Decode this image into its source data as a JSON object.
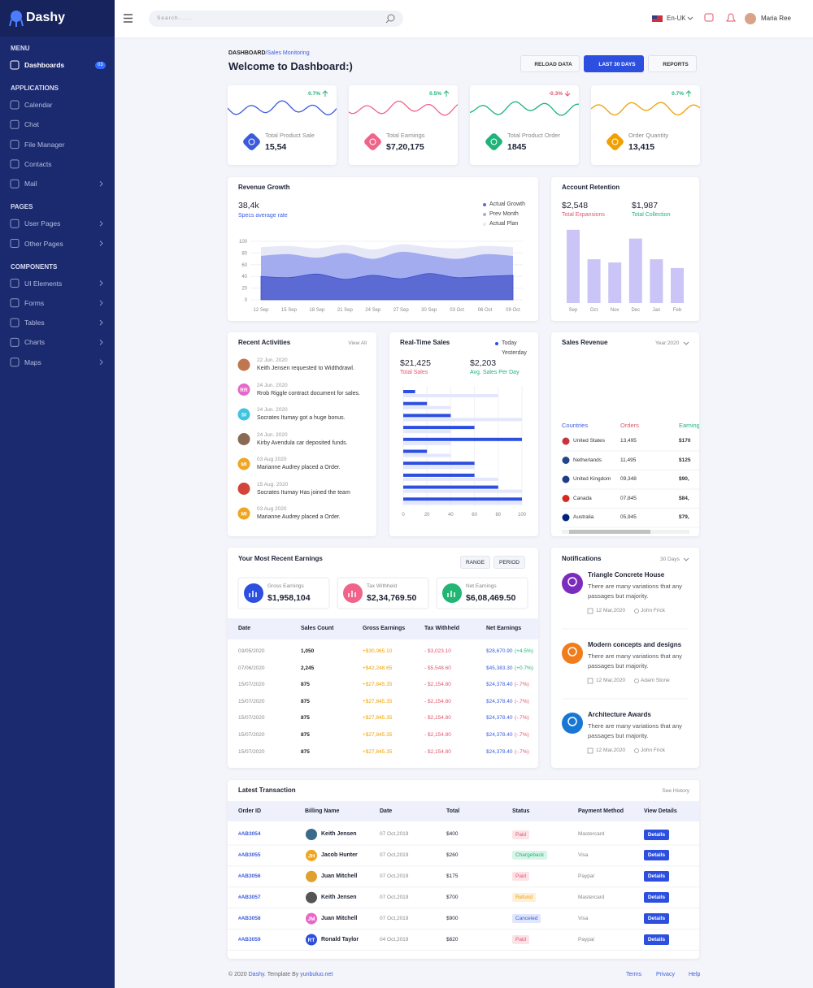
{
  "sidebar": {
    "brand": "Dashy",
    "sections": [
      {
        "title": "MENU",
        "items": [
          {
            "label": "Dashboards",
            "badge": "03",
            "active": true
          }
        ]
      },
      {
        "title": "APPLICATIONS",
        "items": [
          {
            "label": "Calendar"
          },
          {
            "label": "Chat"
          },
          {
            "label": "File Manager"
          },
          {
            "label": "Contacts"
          },
          {
            "label": "Mail",
            "arrow": true
          }
        ]
      },
      {
        "title": "PAGES",
        "items": [
          {
            "label": "User Pages",
            "arrow": true
          },
          {
            "label": "Other Pages",
            "arrow": true
          }
        ]
      },
      {
        "title": "COMPONENTS",
        "items": [
          {
            "label": "UI Elements",
            "arrow": true
          },
          {
            "label": "Forms",
            "arrow": true
          },
          {
            "label": "Tables",
            "arrow": true
          },
          {
            "label": "Charts",
            "arrow": true
          },
          {
            "label": "Maps",
            "arrow": true
          }
        ]
      }
    ]
  },
  "header": {
    "search_placeholder": "Search......",
    "language": "En-UK",
    "user": "Maria Ree"
  },
  "page": {
    "breadcrumb": [
      "DASHBOARD",
      "Sales Monitoring"
    ],
    "separator": "/",
    "title": "Welcome to Dashboard:)",
    "buttons": [
      {
        "label": "RELOAD DATA"
      },
      {
        "label": "LAST 30 DAYS",
        "active": true
      },
      {
        "label": "REPORTS"
      }
    ]
  },
  "stats": [
    {
      "label": "Total Product Sale",
      "value": "15,54",
      "change": "0.7%",
      "trend": "up",
      "color": "#3b5bdb"
    },
    {
      "label": "Total Earnings",
      "value": "$7,20,175",
      "change": "0.5%",
      "trend": "up",
      "color": "#f0648a"
    },
    {
      "label": "Total Product Order",
      "value": "1845",
      "change": "-0.3%",
      "trend": "down",
      "color": "#1fb37a"
    },
    {
      "label": "Order Quantity",
      "value": "13,415",
      "change": "0.7%",
      "trend": "up",
      "color": "#f0a000"
    }
  ],
  "revenue_growth": {
    "type": "area",
    "title": "Revenue Growth",
    "value": "38,4k",
    "subtitle": "Specs average rate",
    "categories": [
      "12 Sep",
      "15 Sep",
      "18 Sep",
      "21 Sep",
      "24 Sep",
      "27 Sep",
      "30 Sep",
      "03 Oct",
      "06 Oct",
      "09 Oct"
    ],
    "ylim": [
      0,
      100
    ],
    "yticks": [
      0,
      20,
      40,
      60,
      80,
      100
    ],
    "grid": true,
    "series": [
      {
        "name": "Actual Growth",
        "color": "#5c6bd3",
        "values": [
          40,
          38,
          44,
          35,
          42,
          36,
          45,
          38,
          40,
          42
        ]
      },
      {
        "name": "Prev Month",
        "color": "#a3acee",
        "values": [
          75,
          78,
          72,
          80,
          70,
          82,
          76,
          70,
          78,
          75
        ]
      },
      {
        "name": "Actual Plan",
        "color": "#e6e8f8",
        "values": [
          90,
          92,
          88,
          94,
          86,
          95,
          90,
          88,
          92,
          90
        ]
      }
    ]
  },
  "account_retention": {
    "type": "bar",
    "title": "Account Retention",
    "kpis": [
      {
        "value": "$2,548",
        "label": "Total Expansions",
        "color": "#e0566b"
      },
      {
        "value": "$1,987",
        "label": "Total Collection",
        "color": "#1fb37a"
      }
    ],
    "categories": [
      "Sep",
      "Oct",
      "Nov",
      "Dec",
      "Jan",
      "Feb"
    ],
    "values": [
      92,
      55,
      51,
      81,
      55,
      44
    ],
    "ylim": [
      0,
      100
    ],
    "color": "#cbc4f7"
  },
  "recent_activities": {
    "title": "Recent Activities",
    "link": "View All",
    "items": [
      {
        "date": "22 Jun. 2020",
        "text": "Keith Jensen requested to Widthdrawl.",
        "color": "#c0764e"
      },
      {
        "date": "24 Jun. 2020",
        "text": "Rrob Riggle contract document for sales.",
        "initials": "RR",
        "color": "#e767c8"
      },
      {
        "date": "24 Jun. 2020",
        "text": "Socrates Itumay got a huge bonus.",
        "initials": "SI",
        "color": "#3fc3e0"
      },
      {
        "date": "24 Jun. 2020",
        "text": "Kirby Avendula car deposited funds.",
        "color": "#8a6a55"
      },
      {
        "date": "03 Aug 2020",
        "text": "Marianne Audrey placed a Order.",
        "initials": "MI",
        "color": "#f0a520"
      },
      {
        "date": "15 Aug. 2020",
        "text": "Socrates Itumay Has joined the team",
        "color": "#d2453a"
      },
      {
        "date": "03 Aug 2020",
        "text": "Marianne Audrey placed a Order.",
        "initials": "MI",
        "color": "#f0a520"
      }
    ]
  },
  "realtime_sales": {
    "type": "hbar",
    "title": "Real-Time Sales",
    "kpis": [
      {
        "value": "$21,425",
        "label": "Total Sales",
        "color": "#e0566b"
      },
      {
        "value": "$2,203",
        "label": "Avg. Sales Per Day",
        "color": "#1fb37a"
      }
    ],
    "xlim": [
      0,
      100
    ],
    "xticks": [
      0,
      20,
      40,
      60,
      80,
      100
    ],
    "series": [
      {
        "name": "Today",
        "color": "#2c4fe0",
        "values": [
          10,
          20,
          40,
          60,
          100,
          20,
          60,
          60,
          80,
          100
        ]
      },
      {
        "name": "Yesterday",
        "color": "#e3e7fb",
        "values": [
          80,
          40,
          100,
          40,
          40,
          40,
          60,
          80,
          100,
          100
        ]
      }
    ]
  },
  "sales_revenue": {
    "title": "Sales Revenue",
    "filter": "Year:2020",
    "columns": [
      {
        "label": "Countries",
        "color": "#3c5ce0"
      },
      {
        "label": "Orders",
        "color": "#e0566b"
      },
      {
        "label": "Earnings",
        "color": "#1fb37a"
      }
    ],
    "rows": [
      [
        "United States",
        "13,495",
        "$170"
      ],
      [
        "Netherlands",
        "11,495",
        "$125"
      ],
      [
        "United Kingdom",
        "09,348",
        "$90,"
      ],
      [
        "Canada",
        "07,845",
        "$84,"
      ],
      [
        "Australia",
        "05,945",
        "$79,"
      ]
    ]
  },
  "earnings": {
    "title": "Your Most Recent Earnings",
    "buttons": [
      "RANGE",
      "PERIOD"
    ],
    "cards": [
      {
        "label": "Gross Earnings",
        "value": "$1,958,104",
        "color": "#2c4fe0"
      },
      {
        "label": "Tax Withheld",
        "value": "$2,34,769.50",
        "color": "#f0648a"
      },
      {
        "label": "Net Earnings",
        "value": "$6,08,469.50",
        "color": "#22b573"
      }
    ],
    "columns": [
      "Date",
      "Sales Count",
      "Gross Earnings",
      "Tax Withheld",
      "Net Earnings"
    ],
    "rows": [
      {
        "date": "03/05/2020",
        "count": "1,050",
        "gross": "+$30,065.10",
        "tax": "- $3,023.10",
        "net": "$28,670.90",
        "change": "(+4.5%)",
        "change_color": "#1fb37a"
      },
      {
        "date": "07/06/2020",
        "count": "2,245",
        "gross": "+$42,248.65",
        "tax": "- $5,548.60",
        "net": "$45,383.30",
        "change": "(+0.7%)",
        "change_color": "#1fb37a"
      },
      {
        "date": "15/07/2020",
        "count": "875",
        "gross": "+$27,845.35",
        "tax": "- $2,154.80",
        "net": "$24,378.40",
        "change": "(-.7%)",
        "change_color": "#e0566b"
      },
      {
        "date": "15/07/2020",
        "count": "875",
        "gross": "+$27,845.35",
        "tax": "- $2,154.80",
        "net": "$24,378.40",
        "change": "(-.7%)",
        "change_color": "#e0566b"
      },
      {
        "date": "15/07/2020",
        "count": "875",
        "gross": "+$27,845.35",
        "tax": "- $2,154.80",
        "net": "$24,378.40",
        "change": "(-.7%)",
        "change_color": "#e0566b"
      },
      {
        "date": "15/07/2020",
        "count": "875",
        "gross": "+$27,845.35",
        "tax": "- $2,154.80",
        "net": "$24,378.40",
        "change": "(-.7%)",
        "change_color": "#e0566b"
      },
      {
        "date": "15/07/2020",
        "count": "875",
        "gross": "+$27,845.35",
        "tax": "- $2,154.80",
        "net": "$24,378.40",
        "change": "(-.7%)",
        "change_color": "#e0566b"
      }
    ]
  },
  "notifications": {
    "title": "Notifications",
    "filter": "30 Days",
    "items": [
      {
        "title": "Triangle Concrete House",
        "text": "There are many variations that any passages but majority.",
        "date": "12 Mar,2020",
        "author": "John Frick",
        "color": "#7b2cbf"
      },
      {
        "title": "Modern concepts and designs",
        "text": "There are many variations that any passages but majority.",
        "date": "12 Mar,2020",
        "author": "Adam Stone",
        "color": "#f07c1b"
      },
      {
        "title": "Architecture Awards",
        "text": "There are many variations that any passages but majority.",
        "date": "12 Mar,2020",
        "author": "John Frick",
        "color": "#1877d4"
      }
    ]
  },
  "transactions": {
    "title": "Latest Transaction",
    "link": "See History",
    "columns": [
      "Order ID",
      "Billing Name",
      "Date",
      "Total",
      "Status",
      "Payment Method",
      "View Details"
    ],
    "rows": [
      {
        "id": "#AB3054",
        "name": "Keith Jensen",
        "color": "#3a6a8a",
        "date": "07 Oct,2019",
        "total": "$400",
        "status": "Paid",
        "status_color": "#e0566b",
        "status_bg": "#fde3e7",
        "method": "Mastercard",
        "action": "Details"
      },
      {
        "id": "#AB3055",
        "name": "Jacob Hunter",
        "initials": "JH",
        "color": "#f0a520",
        "date": "07 Oct,2019",
        "total": "$260",
        "status": "Chargeback",
        "status_color": "#1fb37a",
        "status_bg": "#d8f5ea",
        "method": "Visa",
        "action": "Details"
      },
      {
        "id": "#AB3056",
        "name": "Juan Mitchell",
        "color": "#e0a030",
        "date": "07 Oct,2019",
        "total": "$175",
        "status": "Paid",
        "status_color": "#e0566b",
        "status_bg": "#fde3e7",
        "method": "Paypal",
        "action": "Details"
      },
      {
        "id": "#AB3057",
        "name": "Keith Jensen",
        "color": "#555",
        "date": "07 Oct,2019",
        "total": "$700",
        "status": "Refund",
        "status_color": "#f0a000",
        "status_bg": "#fdf0d8",
        "method": "Mastercard",
        "action": "Details"
      },
      {
        "id": "#AB3058",
        "name": "Juan Mitchell",
        "initials": "JM",
        "color": "#e767c8",
        "date": "07 Oct,2019",
        "total": "$900",
        "status": "Canceled",
        "status_color": "#3c5ce0",
        "status_bg": "#e0e6fb",
        "method": "Visa",
        "action": "Details"
      },
      {
        "id": "#AB3059",
        "name": "Ronald Taylor",
        "initials": "RT",
        "color": "#2c4fe0",
        "date": "04 Oct,2019",
        "total": "$820",
        "status": "Paid",
        "status_color": "#e0566b",
        "status_bg": "#fde3e7",
        "method": "Paypal",
        "action": "Details"
      }
    ]
  },
  "footer": {
    "copyright": [
      "© 2020 ",
      "Dashy",
      ". Template By ",
      "yunbuluo.net"
    ],
    "links": [
      "Terms",
      "Privacy",
      "Help"
    ]
  }
}
